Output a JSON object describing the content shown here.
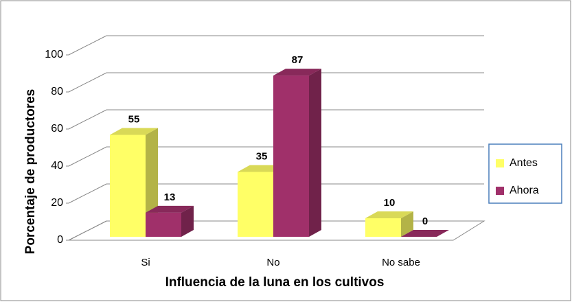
{
  "chart_data": {
    "type": "bar3d",
    "xlabel": "Influencia de la luna en los cultivos",
    "ylabel": "Porcentaje de productores",
    "categories": [
      "Si",
      "No",
      "No sabe"
    ],
    "series": [
      {
        "name": "Antes",
        "color": "#ffff66",
        "values": [
          55,
          35,
          10
        ]
      },
      {
        "name": "Ahora",
        "color": "#a0306a",
        "values": [
          13,
          87,
          0
        ]
      }
    ],
    "ylim": [
      0,
      100
    ],
    "yticks": [
      0,
      20,
      40,
      60,
      80,
      100
    ],
    "grid": true,
    "legend": "right"
  }
}
